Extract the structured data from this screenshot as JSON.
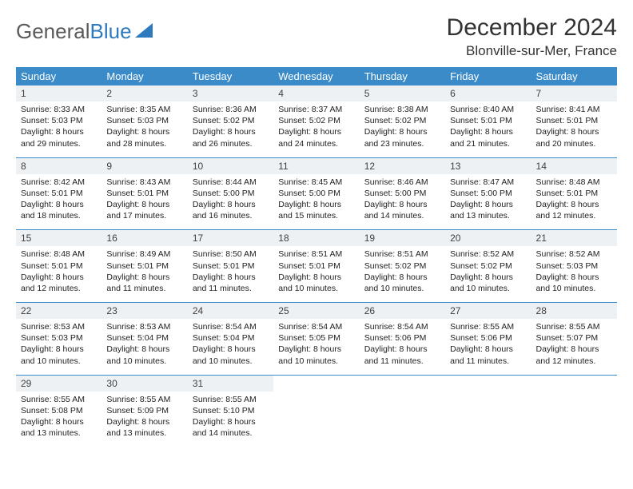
{
  "logo": {
    "text1": "General",
    "text2": "Blue"
  },
  "title": "December 2024",
  "location": "Blonville-sur-Mer, France",
  "colors": {
    "header_bg": "#3b8bc9",
    "header_fg": "#ffffff",
    "daynum_bg": "#eef1f3",
    "row_border": "#3b8bc9",
    "logo_gray": "#5a5a5a",
    "logo_blue": "#2f7abf"
  },
  "weekdays": [
    "Sunday",
    "Monday",
    "Tuesday",
    "Wednesday",
    "Thursday",
    "Friday",
    "Saturday"
  ],
  "weeks": [
    [
      {
        "n": "1",
        "sr": "8:33 AM",
        "ss": "5:03 PM",
        "dl": "8 hours and 29 minutes."
      },
      {
        "n": "2",
        "sr": "8:35 AM",
        "ss": "5:03 PM",
        "dl": "8 hours and 28 minutes."
      },
      {
        "n": "3",
        "sr": "8:36 AM",
        "ss": "5:02 PM",
        "dl": "8 hours and 26 minutes."
      },
      {
        "n": "4",
        "sr": "8:37 AM",
        "ss": "5:02 PM",
        "dl": "8 hours and 24 minutes."
      },
      {
        "n": "5",
        "sr": "8:38 AM",
        "ss": "5:02 PM",
        "dl": "8 hours and 23 minutes."
      },
      {
        "n": "6",
        "sr": "8:40 AM",
        "ss": "5:01 PM",
        "dl": "8 hours and 21 minutes."
      },
      {
        "n": "7",
        "sr": "8:41 AM",
        "ss": "5:01 PM",
        "dl": "8 hours and 20 minutes."
      }
    ],
    [
      {
        "n": "8",
        "sr": "8:42 AM",
        "ss": "5:01 PM",
        "dl": "8 hours and 18 minutes."
      },
      {
        "n": "9",
        "sr": "8:43 AM",
        "ss": "5:01 PM",
        "dl": "8 hours and 17 minutes."
      },
      {
        "n": "10",
        "sr": "8:44 AM",
        "ss": "5:00 PM",
        "dl": "8 hours and 16 minutes."
      },
      {
        "n": "11",
        "sr": "8:45 AM",
        "ss": "5:00 PM",
        "dl": "8 hours and 15 minutes."
      },
      {
        "n": "12",
        "sr": "8:46 AM",
        "ss": "5:00 PM",
        "dl": "8 hours and 14 minutes."
      },
      {
        "n": "13",
        "sr": "8:47 AM",
        "ss": "5:00 PM",
        "dl": "8 hours and 13 minutes."
      },
      {
        "n": "14",
        "sr": "8:48 AM",
        "ss": "5:01 PM",
        "dl": "8 hours and 12 minutes."
      }
    ],
    [
      {
        "n": "15",
        "sr": "8:48 AM",
        "ss": "5:01 PM",
        "dl": "8 hours and 12 minutes."
      },
      {
        "n": "16",
        "sr": "8:49 AM",
        "ss": "5:01 PM",
        "dl": "8 hours and 11 minutes."
      },
      {
        "n": "17",
        "sr": "8:50 AM",
        "ss": "5:01 PM",
        "dl": "8 hours and 11 minutes."
      },
      {
        "n": "18",
        "sr": "8:51 AM",
        "ss": "5:01 PM",
        "dl": "8 hours and 10 minutes."
      },
      {
        "n": "19",
        "sr": "8:51 AM",
        "ss": "5:02 PM",
        "dl": "8 hours and 10 minutes."
      },
      {
        "n": "20",
        "sr": "8:52 AM",
        "ss": "5:02 PM",
        "dl": "8 hours and 10 minutes."
      },
      {
        "n": "21",
        "sr": "8:52 AM",
        "ss": "5:03 PM",
        "dl": "8 hours and 10 minutes."
      }
    ],
    [
      {
        "n": "22",
        "sr": "8:53 AM",
        "ss": "5:03 PM",
        "dl": "8 hours and 10 minutes."
      },
      {
        "n": "23",
        "sr": "8:53 AM",
        "ss": "5:04 PM",
        "dl": "8 hours and 10 minutes."
      },
      {
        "n": "24",
        "sr": "8:54 AM",
        "ss": "5:04 PM",
        "dl": "8 hours and 10 minutes."
      },
      {
        "n": "25",
        "sr": "8:54 AM",
        "ss": "5:05 PM",
        "dl": "8 hours and 10 minutes."
      },
      {
        "n": "26",
        "sr": "8:54 AM",
        "ss": "5:06 PM",
        "dl": "8 hours and 11 minutes."
      },
      {
        "n": "27",
        "sr": "8:55 AM",
        "ss": "5:06 PM",
        "dl": "8 hours and 11 minutes."
      },
      {
        "n": "28",
        "sr": "8:55 AM",
        "ss": "5:07 PM",
        "dl": "8 hours and 12 minutes."
      }
    ],
    [
      {
        "n": "29",
        "sr": "8:55 AM",
        "ss": "5:08 PM",
        "dl": "8 hours and 13 minutes."
      },
      {
        "n": "30",
        "sr": "8:55 AM",
        "ss": "5:09 PM",
        "dl": "8 hours and 13 minutes."
      },
      {
        "n": "31",
        "sr": "8:55 AM",
        "ss": "5:10 PM",
        "dl": "8 hours and 14 minutes."
      },
      null,
      null,
      null,
      null
    ]
  ],
  "labels": {
    "sunrise": "Sunrise:",
    "sunset": "Sunset:",
    "daylight": "Daylight:"
  }
}
